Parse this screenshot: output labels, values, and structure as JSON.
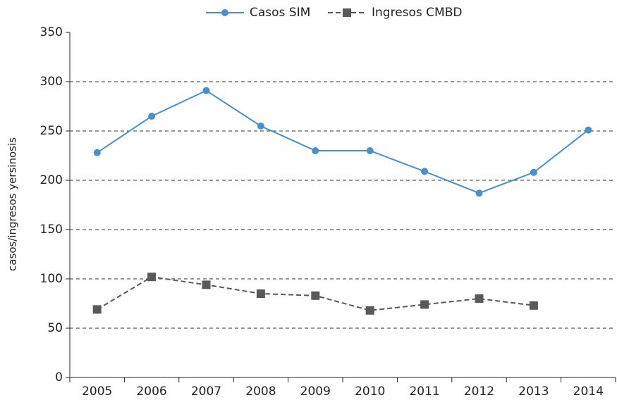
{
  "chart_data": {
    "type": "line",
    "y_label": "casos/ingresos yersinosis",
    "categories": [
      "2005",
      "2006",
      "2007",
      "2008",
      "2009",
      "2010",
      "2011",
      "2012",
      "2013",
      "2014"
    ],
    "series": [
      {
        "name": "Casos SIM",
        "color": "#4a8fcc",
        "marker": "circle",
        "dashed": false,
        "values": [
          228,
          265,
          291,
          255,
          230,
          230,
          209,
          187,
          208,
          251
        ]
      },
      {
        "name": "Ingresos CMBD",
        "color": "#595959",
        "marker": "square",
        "dashed": true,
        "values": [
          69,
          102,
          94,
          85,
          83,
          68,
          74,
          80,
          73,
          null
        ]
      }
    ],
    "ylim": [
      0,
      350
    ],
    "yticks": [
      0,
      50,
      100,
      150,
      200,
      250,
      300,
      350
    ],
    "grid": true
  }
}
